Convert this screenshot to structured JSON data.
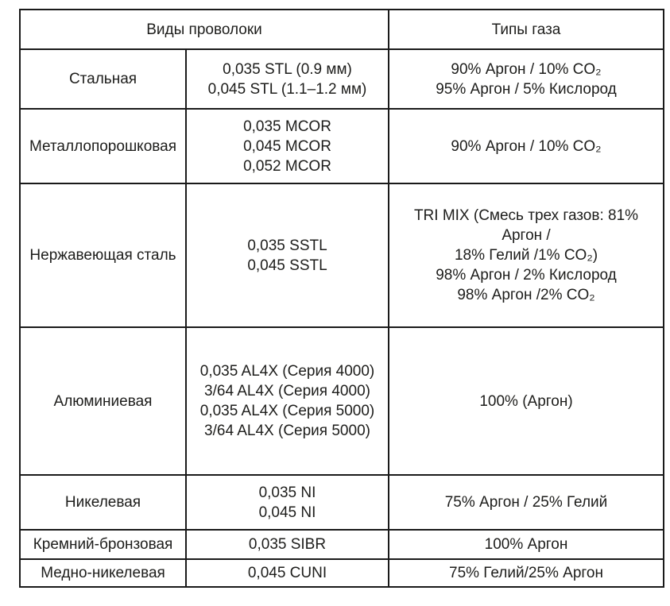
{
  "table": {
    "colors": {
      "border": "#1a1a1a",
      "text": "#1d1d1b",
      "background": "#ffffff"
    },
    "header": {
      "wires": "Виды проволоки",
      "gas": "Типы газа"
    },
    "rows": [
      {
        "type": "Стальная",
        "wires": [
          "0,035 STL (0.9 мм)",
          "0,045 STL (1.1–1.2 мм)"
        ],
        "gases": [
          "90% Аргон / 10% CO₂",
          "95% Аргон / 5% Кислород"
        ]
      },
      {
        "type": "Металлопорошковая",
        "wires": [
          "0,035 MCOR",
          "0,045 MCOR",
          "0,052 MCOR"
        ],
        "gases": [
          "90% Аргон / 10% CO₂"
        ]
      },
      {
        "type": "Нержавеющая сталь",
        "wires": [
          "0,035 SSTL",
          "0,045 SSTL"
        ],
        "gases": [
          "TRI MIX (Смесь трех газов: 81%",
          "Аргон /",
          "18% Гелий /1% CO₂)",
          "98% Аргон / 2% Кислород",
          "98% Аргон /2% CO₂"
        ]
      },
      {
        "type": "Алюминиевая",
        "wires": [
          "0,035 AL4X (Серия 4000)",
          "3/64 AL4X (Серия 4000)",
          "0,035 AL4X (Серия 5000)",
          "3/64 AL4X (Серия 5000)"
        ],
        "gases": [
          "100% (Аргон)"
        ]
      },
      {
        "type": "Никелевая",
        "wires": [
          "0,035 NI",
          "0,045 NI"
        ],
        "gases": [
          "75% Аргон / 25% Гелий"
        ]
      },
      {
        "type": "Кремний-бронзовая",
        "wires": [
          "0,035 SIBR"
        ],
        "gases": [
          "100% Аргон"
        ]
      },
      {
        "type": "Медно-никелевая",
        "wires": [
          "0,045 CUNI"
        ],
        "gases": [
          "75% Гелий/25% Аргон"
        ]
      }
    ]
  }
}
